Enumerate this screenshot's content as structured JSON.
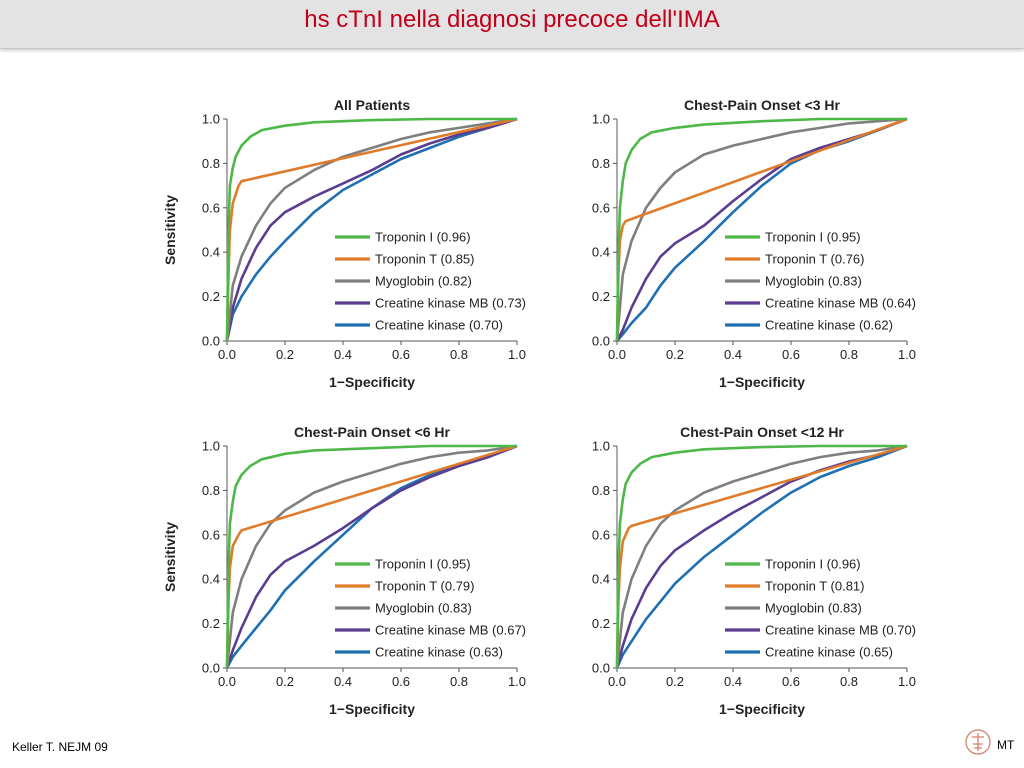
{
  "slide": {
    "title": "hs cTnI nella diagnosi precoce dell'IMA",
    "citation": "Keller T. NEJM 09",
    "author_initials": "MT",
    "logo_text": "MT",
    "accent_color": "#c0001a"
  },
  "chart_data": [
    {
      "type": "line",
      "title": "All Patients",
      "xlabel": "1−Specificity",
      "ylabel": "Sensitivity",
      "xlim": [
        0,
        1
      ],
      "ylim": [
        0,
        1
      ],
      "ticks": [
        "0.0",
        "0.2",
        "0.4",
        "0.6",
        "0.8",
        "1.0"
      ],
      "legend_position": "bottom-right",
      "series": [
        {
          "name": "Troponin I (0.96)",
          "color": "#4db848",
          "x": [
            0,
            0.005,
            0.01,
            0.02,
            0.03,
            0.05,
            0.08,
            0.12,
            0.2,
            0.3,
            0.5,
            0.7,
            1
          ],
          "y": [
            0,
            0.5,
            0.7,
            0.78,
            0.83,
            0.88,
            0.92,
            0.95,
            0.97,
            0.985,
            0.995,
            1,
            1
          ]
        },
        {
          "name": "Troponin T (0.85)",
          "color": "#e07b2a",
          "x": [
            0,
            0.005,
            0.01,
            0.02,
            0.04,
            0.05,
            1
          ],
          "y": [
            0,
            0.3,
            0.5,
            0.62,
            0.7,
            0.72,
            1
          ]
        },
        {
          "name": "Myoglobin (0.82)",
          "color": "#7f7f7f",
          "x": [
            0,
            0.02,
            0.05,
            0.1,
            0.15,
            0.2,
            0.3,
            0.4,
            0.5,
            0.6,
            0.7,
            0.8,
            0.9,
            1
          ],
          "y": [
            0,
            0.25,
            0.38,
            0.52,
            0.62,
            0.69,
            0.77,
            0.83,
            0.87,
            0.91,
            0.94,
            0.96,
            0.98,
            1
          ]
        },
        {
          "name": "Creatine kinase MB (0.73)",
          "color": "#5a3c91",
          "x": [
            0,
            0.02,
            0.05,
            0.1,
            0.15,
            0.2,
            0.3,
            0.4,
            0.5,
            0.6,
            0.7,
            0.8,
            0.9,
            1
          ],
          "y": [
            0,
            0.15,
            0.28,
            0.42,
            0.52,
            0.58,
            0.65,
            0.71,
            0.77,
            0.84,
            0.89,
            0.93,
            0.96,
            1
          ]
        },
        {
          "name": "Creatine kinase (0.70)",
          "color": "#1f6fb3",
          "x": [
            0,
            0.02,
            0.05,
            0.1,
            0.15,
            0.2,
            0.3,
            0.4,
            0.5,
            0.6,
            0.7,
            0.8,
            0.9,
            1
          ],
          "y": [
            0,
            0.12,
            0.2,
            0.3,
            0.38,
            0.45,
            0.58,
            0.68,
            0.75,
            0.82,
            0.87,
            0.92,
            0.96,
            1
          ]
        }
      ]
    },
    {
      "type": "line",
      "title": "Chest-Pain Onset <3 Hr",
      "xlabel": "1−Specificity",
      "ylabel": "",
      "xlim": [
        0,
        1
      ],
      "ylim": [
        0,
        1
      ],
      "ticks": [
        "0.0",
        "0.2",
        "0.4",
        "0.6",
        "0.8",
        "1.0"
      ],
      "legend_position": "bottom-right",
      "series": [
        {
          "name": "Troponin I (0.95)",
          "color": "#4db848",
          "x": [
            0,
            0.005,
            0.01,
            0.02,
            0.03,
            0.05,
            0.08,
            0.12,
            0.2,
            0.3,
            0.5,
            0.7,
            1
          ],
          "y": [
            0,
            0.4,
            0.6,
            0.72,
            0.8,
            0.86,
            0.91,
            0.94,
            0.96,
            0.975,
            0.99,
            1,
            1
          ]
        },
        {
          "name": "Troponin T (0.76)",
          "color": "#e07b2a",
          "x": [
            0,
            0.005,
            0.01,
            0.02,
            0.03,
            1
          ],
          "y": [
            0,
            0.3,
            0.45,
            0.52,
            0.54,
            1
          ]
        },
        {
          "name": "Myoglobin (0.83)",
          "color": "#7f7f7f",
          "x": [
            0,
            0.02,
            0.05,
            0.1,
            0.15,
            0.2,
            0.3,
            0.4,
            0.5,
            0.6,
            0.7,
            0.8,
            0.9,
            1
          ],
          "y": [
            0,
            0.3,
            0.45,
            0.6,
            0.69,
            0.76,
            0.84,
            0.88,
            0.91,
            0.94,
            0.96,
            0.98,
            0.99,
            1
          ]
        },
        {
          "name": "Creatine kinase MB (0.64)",
          "color": "#5a3c91",
          "x": [
            0,
            0.02,
            0.05,
            0.1,
            0.15,
            0.2,
            0.3,
            0.4,
            0.5,
            0.6,
            0.7,
            0.8,
            0.9,
            1
          ],
          "y": [
            0,
            0.05,
            0.15,
            0.28,
            0.38,
            0.44,
            0.52,
            0.63,
            0.73,
            0.82,
            0.87,
            0.91,
            0.95,
            1
          ]
        },
        {
          "name": "Creatine kinase (0.62)",
          "color": "#1f6fb3",
          "x": [
            0,
            0.02,
            0.05,
            0.1,
            0.15,
            0.2,
            0.3,
            0.4,
            0.5,
            0.6,
            0.7,
            0.8,
            0.9,
            1
          ],
          "y": [
            0,
            0.03,
            0.08,
            0.15,
            0.25,
            0.33,
            0.45,
            0.58,
            0.7,
            0.8,
            0.86,
            0.9,
            0.95,
            1
          ]
        }
      ]
    },
    {
      "type": "line",
      "title": "Chest-Pain Onset <6 Hr",
      "xlabel": "1−Specificity",
      "ylabel": "Sensitivity",
      "xlim": [
        0,
        1
      ],
      "ylim": [
        0,
        1
      ],
      "ticks": [
        "0.0",
        "0.2",
        "0.4",
        "0.6",
        "0.8",
        "1.0"
      ],
      "legend_position": "bottom-right",
      "series": [
        {
          "name": "Troponin I (0.95)",
          "color": "#4db848",
          "x": [
            0,
            0.005,
            0.01,
            0.02,
            0.03,
            0.05,
            0.08,
            0.12,
            0.2,
            0.3,
            0.5,
            0.7,
            1
          ],
          "y": [
            0,
            0.45,
            0.65,
            0.75,
            0.82,
            0.87,
            0.91,
            0.94,
            0.965,
            0.98,
            0.99,
            1,
            1
          ]
        },
        {
          "name": "Troponin T (0.79)",
          "color": "#e07b2a",
          "x": [
            0,
            0.005,
            0.01,
            0.02,
            0.04,
            0.05,
            1
          ],
          "y": [
            0,
            0.3,
            0.45,
            0.55,
            0.6,
            0.62,
            1
          ]
        },
        {
          "name": "Myoglobin (0.83)",
          "color": "#7f7f7f",
          "x": [
            0,
            0.02,
            0.05,
            0.1,
            0.15,
            0.2,
            0.3,
            0.4,
            0.5,
            0.6,
            0.7,
            0.8,
            0.9,
            1
          ],
          "y": [
            0,
            0.25,
            0.4,
            0.55,
            0.65,
            0.71,
            0.79,
            0.84,
            0.88,
            0.92,
            0.95,
            0.97,
            0.98,
            1
          ]
        },
        {
          "name": "Creatine kinase MB (0.67)",
          "color": "#5a3c91",
          "x": [
            0,
            0.02,
            0.05,
            0.1,
            0.15,
            0.2,
            0.3,
            0.4,
            0.5,
            0.6,
            0.7,
            0.8,
            0.9,
            1
          ],
          "y": [
            0,
            0.08,
            0.18,
            0.32,
            0.42,
            0.48,
            0.55,
            0.63,
            0.72,
            0.8,
            0.86,
            0.91,
            0.95,
            1
          ]
        },
        {
          "name": "Creatine kinase (0.63)",
          "color": "#1f6fb3",
          "x": [
            0,
            0.02,
            0.05,
            0.1,
            0.15,
            0.2,
            0.3,
            0.4,
            0.5,
            0.6,
            0.7,
            0.8,
            0.9,
            1
          ],
          "y": [
            0,
            0.05,
            0.1,
            0.18,
            0.26,
            0.35,
            0.48,
            0.6,
            0.72,
            0.81,
            0.87,
            0.91,
            0.95,
            1
          ]
        }
      ]
    },
    {
      "type": "line",
      "title": "Chest-Pain Onset <12 Hr",
      "xlabel": "1−Specificity",
      "ylabel": "",
      "xlim": [
        0,
        1
      ],
      "ylim": [
        0,
        1
      ],
      "ticks": [
        "0.0",
        "0.2",
        "0.4",
        "0.6",
        "0.8",
        "1.0"
      ],
      "legend_position": "bottom-right",
      "series": [
        {
          "name": "Troponin I (0.96)",
          "color": "#4db848",
          "x": [
            0,
            0.005,
            0.01,
            0.02,
            0.03,
            0.05,
            0.08,
            0.12,
            0.2,
            0.3,
            0.5,
            0.7,
            1
          ],
          "y": [
            0,
            0.45,
            0.65,
            0.76,
            0.83,
            0.88,
            0.92,
            0.95,
            0.97,
            0.985,
            0.995,
            1,
            1
          ]
        },
        {
          "name": "Troponin T (0.81)",
          "color": "#e07b2a",
          "x": [
            0,
            0.005,
            0.01,
            0.02,
            0.04,
            0.05,
            1
          ],
          "y": [
            0,
            0.3,
            0.45,
            0.57,
            0.63,
            0.64,
            1
          ]
        },
        {
          "name": "Myoglobin (0.83)",
          "color": "#7f7f7f",
          "x": [
            0,
            0.02,
            0.05,
            0.1,
            0.15,
            0.2,
            0.3,
            0.4,
            0.5,
            0.6,
            0.7,
            0.8,
            0.9,
            1
          ],
          "y": [
            0,
            0.25,
            0.4,
            0.55,
            0.65,
            0.71,
            0.79,
            0.84,
            0.88,
            0.92,
            0.95,
            0.97,
            0.98,
            1
          ]
        },
        {
          "name": "Creatine kinase MB (0.70)",
          "color": "#5a3c91",
          "x": [
            0,
            0.02,
            0.05,
            0.1,
            0.15,
            0.2,
            0.3,
            0.4,
            0.5,
            0.6,
            0.7,
            0.8,
            0.9,
            1
          ],
          "y": [
            0,
            0.1,
            0.22,
            0.36,
            0.46,
            0.53,
            0.62,
            0.7,
            0.77,
            0.84,
            0.89,
            0.93,
            0.96,
            1
          ]
        },
        {
          "name": "Creatine kinase (0.65)",
          "color": "#1f6fb3",
          "x": [
            0,
            0.02,
            0.05,
            0.1,
            0.15,
            0.2,
            0.3,
            0.4,
            0.5,
            0.6,
            0.7,
            0.8,
            0.9,
            1
          ],
          "y": [
            0,
            0.06,
            0.12,
            0.22,
            0.3,
            0.38,
            0.5,
            0.6,
            0.7,
            0.79,
            0.86,
            0.91,
            0.95,
            1
          ]
        }
      ]
    }
  ]
}
